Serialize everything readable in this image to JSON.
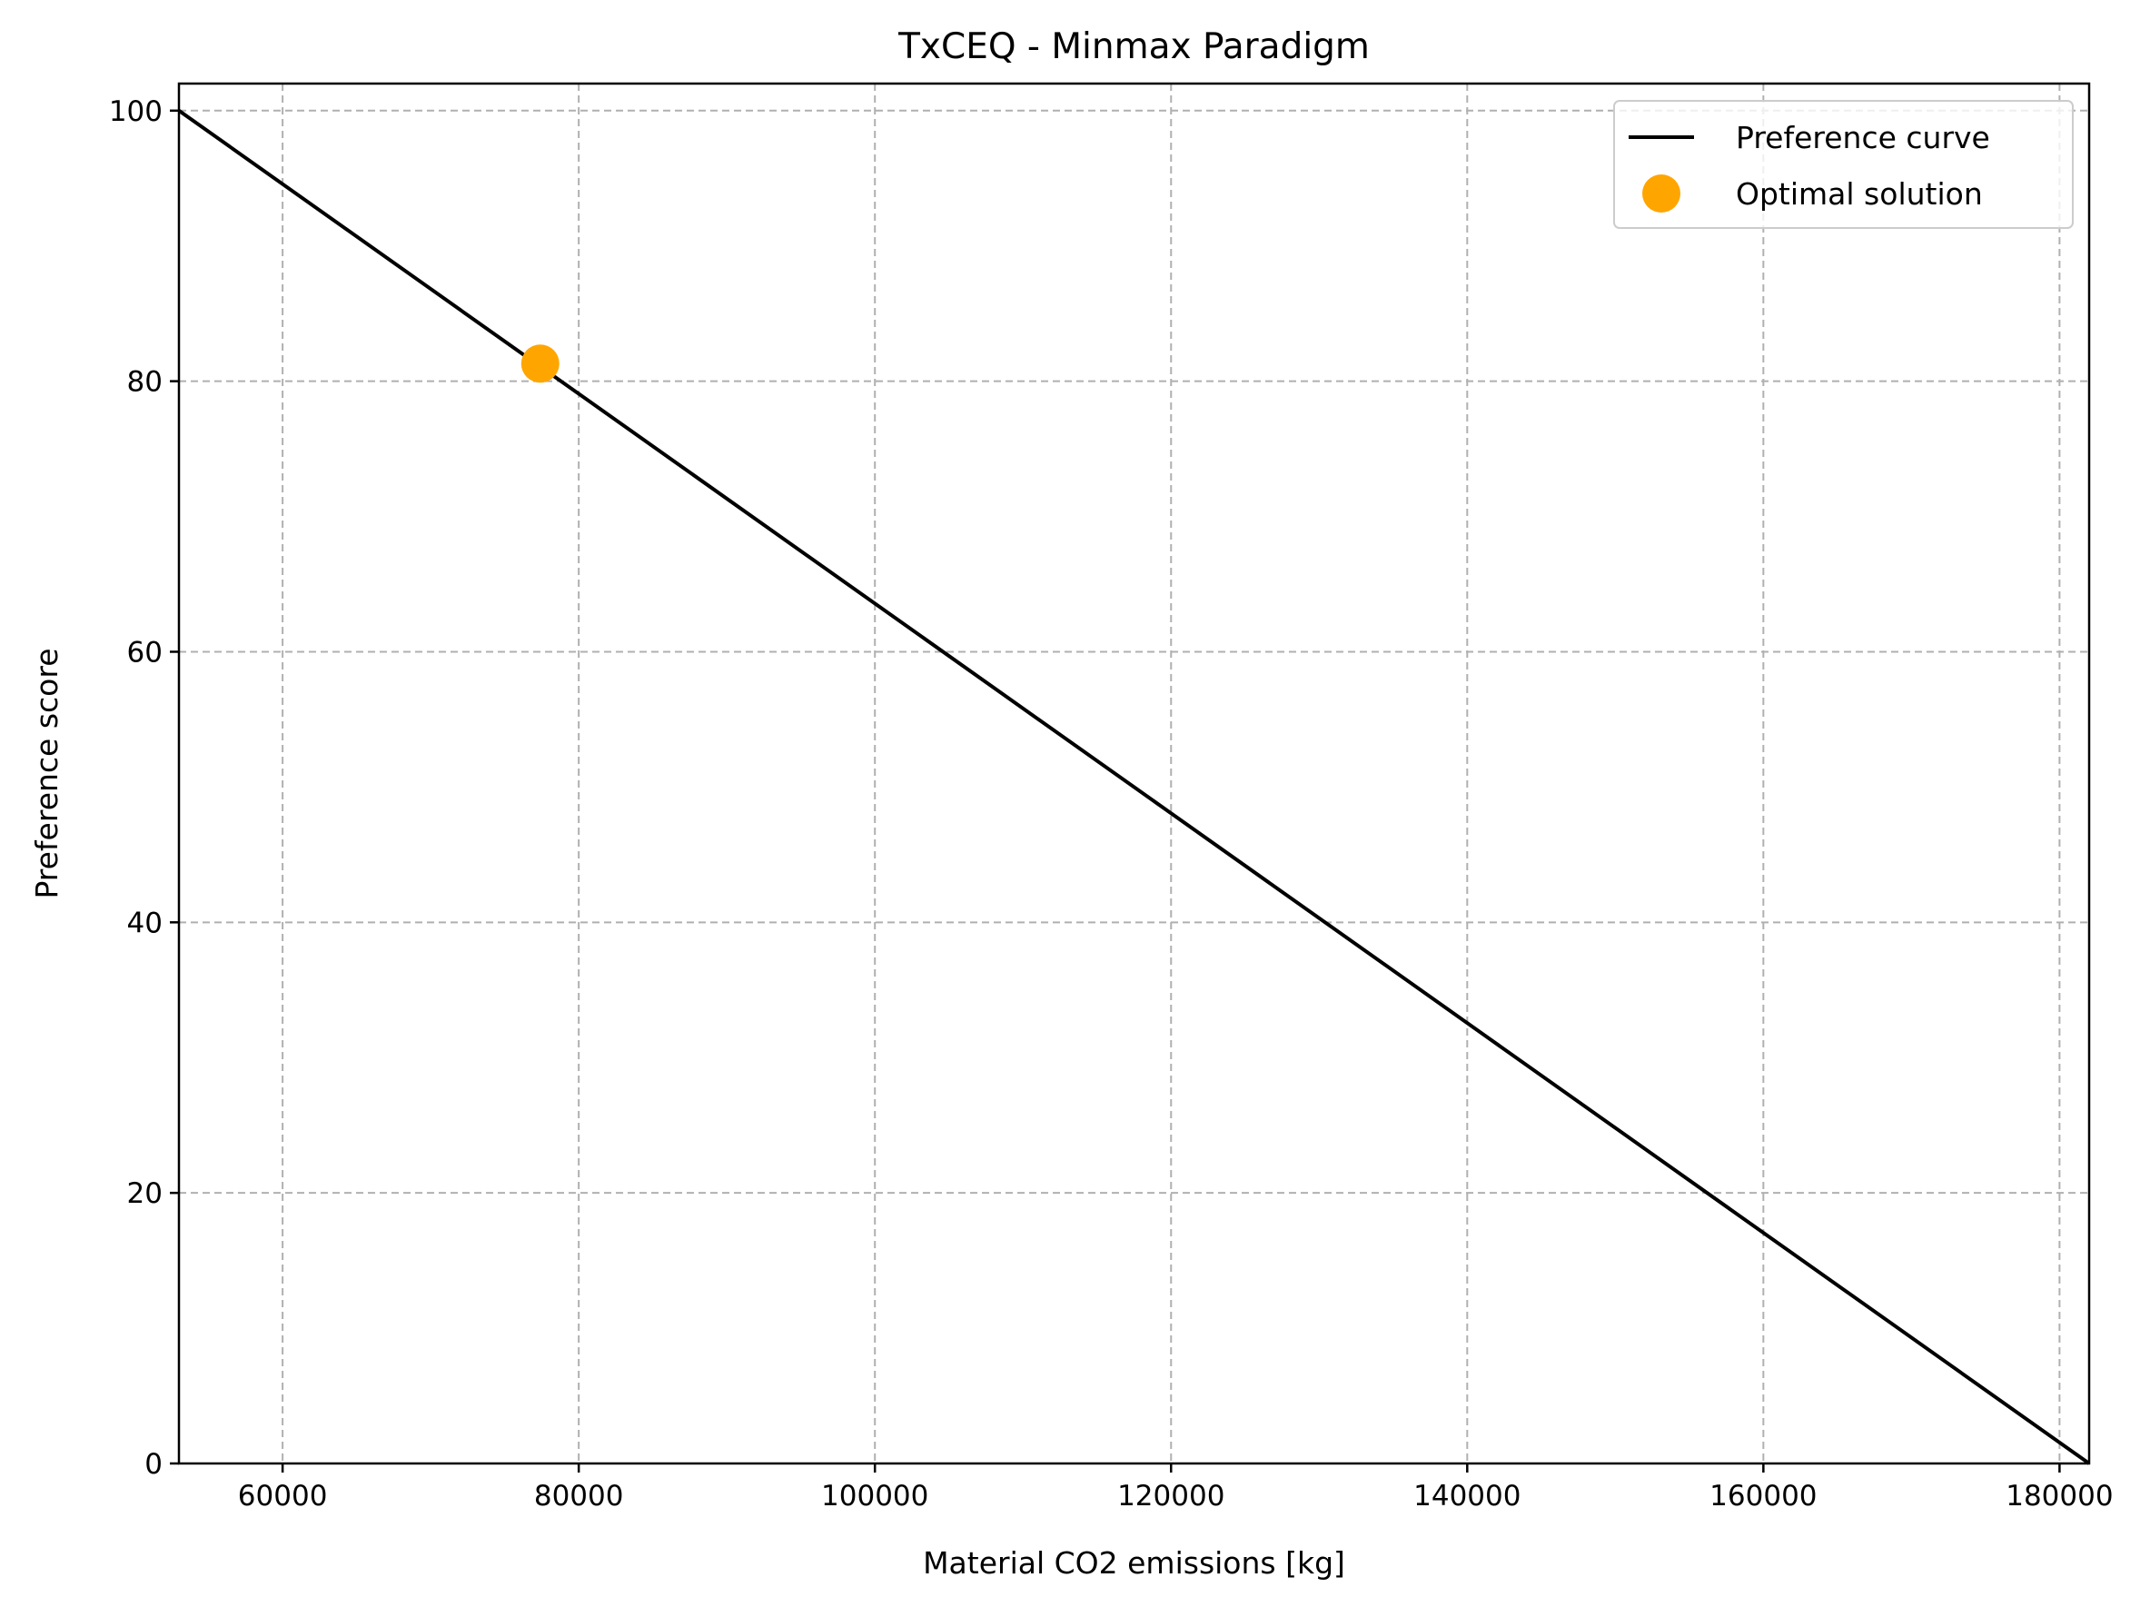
{
  "chart_data": {
    "type": "line",
    "title": "TxCEQ - Minmax Paradigm",
    "xlabel": "Material CO2 emissions [kg]",
    "ylabel": "Preference score",
    "xlim": [
      53000,
      182000
    ],
    "ylim": [
      0,
      102
    ],
    "xticks": [
      60000,
      80000,
      100000,
      120000,
      140000,
      160000,
      180000
    ],
    "yticks": [
      0,
      20,
      40,
      60,
      80,
      100
    ],
    "grid": true,
    "legend_position": "top-right",
    "series": [
      {
        "name": "Preference curve",
        "kind": "line",
        "color": "#000000",
        "x": [
          53000,
          182000
        ],
        "y": [
          100,
          0
        ]
      },
      {
        "name": "Optimal solution",
        "kind": "scatter",
        "color": "#ffa500",
        "x": [
          77400
        ],
        "y": [
          81.3
        ]
      }
    ]
  }
}
